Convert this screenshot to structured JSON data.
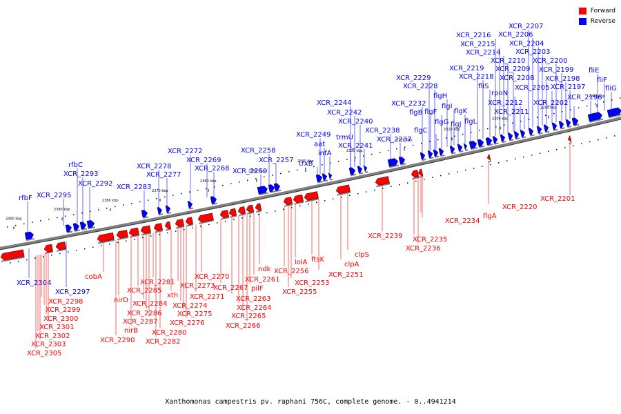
{
  "caption": "Xanthomonas campestris pv. raphani 756C, complete genome. - 0..4941214",
  "legend": [
    {
      "label": "Forward",
      "color": "#ff0000"
    },
    {
      "label": "Reverse",
      "color": "#0000ff"
    }
  ],
  "colors": {
    "forward": "#ff0000",
    "reverse": "#0000ff",
    "backbone": "#808080"
  },
  "ticks": [
    "2400 kbp",
    "2390 kbp",
    "2380 kbp",
    "2370 kbp",
    "2360 kbp",
    "2350 kbp",
    "2340 kbp",
    "2330 kbp",
    "2320 kbp",
    "2310 kbp",
    "2300 kbp",
    "2290 kbp",
    "2280 kbp"
  ],
  "reverse_labels": [
    "rfbF",
    "XCR_2295",
    "rfbC",
    "XCR_2293",
    "XCR_2292",
    "XCR_2283",
    "XCR_2278",
    "XCR_2277",
    "XCR_2272",
    "XCR_2269",
    "XCR_2268",
    "XCR_2259",
    "XCR_2258",
    "XCR_2257",
    "trxB",
    "XCR_2249",
    "aat",
    "infA",
    "XCR_2244",
    "XCR_2242",
    "trmU",
    "XCR_2240",
    "XCR_2241",
    "XCR_2238",
    "XCR_2237",
    "XCR_2232",
    "XCR_2229",
    "XCR_2228",
    "flgB",
    "flgC",
    "flgF",
    "flgH",
    "flgG",
    "flgI",
    "flgJ",
    "flgK",
    "flgL",
    "XCR_2219",
    "XCR_2218",
    "fliS",
    "XCR_2216",
    "XCR_2215",
    "XCR_2214",
    "XCR_2210",
    "XCR_2209",
    "rpoN",
    "XCR_2212",
    "XCR_2211",
    "XCR_2207",
    "XCR_2206",
    "XCR_2204",
    "XCR_2203",
    "XCR_2208",
    "XCR_2205",
    "XCR_2200",
    "XCR_2199",
    "XCR_2198",
    "XCR_2197",
    "XCR_2202",
    "XCR_2196",
    "fliE",
    "fliF",
    "fliG",
    "XCR_2304",
    "XCR_2297"
  ],
  "forward_labels": [
    "XCR_2298",
    "XCR_2299",
    "XCR_2300",
    "XCR_2301",
    "XCR_2302",
    "XCR_2303",
    "XCR_2305",
    "cobA",
    "nirD",
    "nirB",
    "XCR_2290",
    "XCR_2285",
    "XCR_2281",
    "XCR_2284",
    "XCR_2286",
    "XCR_2287",
    "XCR_2280",
    "XCR_2282",
    "xth",
    "XCR_2273",
    "XCR_2274",
    "XCR_2275",
    "XCR_2276",
    "XCR_2271",
    "XCR_2270",
    "XCR_2267",
    "XCR_2263",
    "XCR_2264",
    "XCR_2265",
    "XCR_2266",
    "pilF",
    "XCR_2261",
    "ndk",
    "XCR_2256",
    "XCR_2253",
    "XCR_2255",
    "lolA",
    "ftsK",
    "XCR_2251",
    "clpA",
    "clpS",
    "XCR_2239",
    "XCR_2235",
    "XCR_2236",
    "XCR_2234",
    "flgA",
    "XCR_2220",
    "XCR_2201"
  ]
}
